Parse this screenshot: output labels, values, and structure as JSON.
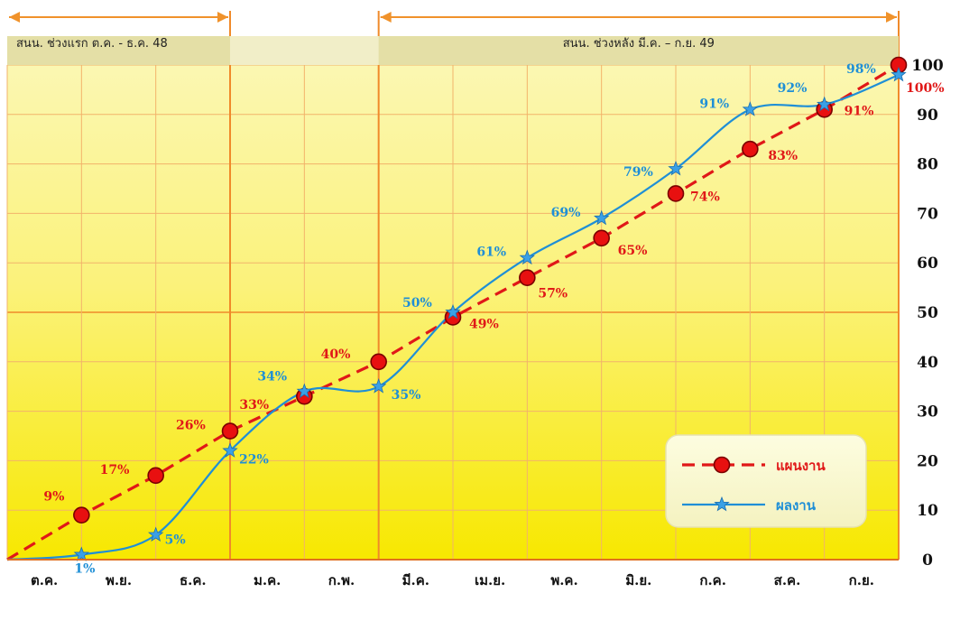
{
  "chart_data": {
    "type": "line",
    "title": "",
    "xlabel": "",
    "ylabel": "",
    "categories": [
      "ต.ค.",
      "พ.ย.",
      "ธ.ค.",
      "ม.ค.",
      "ก.พ.",
      "มี.ค.",
      "เม.ย.",
      "พ.ค.",
      "มิ.ย.",
      "ก.ค.",
      "ส.ค.",
      "ก.ย."
    ],
    "ylim": [
      0,
      100
    ],
    "yticks": [
      0,
      10,
      20,
      30,
      40,
      50,
      60,
      70,
      80,
      90,
      100
    ],
    "grid": true,
    "legend_position": "bottom-right",
    "periods": [
      {
        "label": "สนน. ช่วงแรก ต.ค. - ธ.ค. 48",
        "from": 0,
        "to": 3
      },
      {
        "label": "สนน. ช่วงหลัง มี.ค. – ก.ย. 49",
        "from": 5,
        "to": 12
      }
    ],
    "series": [
      {
        "name": "แผนงาน",
        "color": "#e01818",
        "style": "dashed-circle",
        "x": [
          0,
          1,
          2,
          3,
          4,
          5,
          6,
          7,
          8,
          9,
          10,
          11,
          12
        ],
        "y": [
          0,
          9,
          17,
          26,
          33,
          40,
          49,
          57,
          65,
          74,
          83,
          91,
          100
        ],
        "labels": [
          "",
          "9%",
          "17%",
          "26%",
          "33%",
          "40%",
          "49%",
          "57%",
          "65%",
          "74%",
          "83%",
          "91%",
          "100%"
        ]
      },
      {
        "name": "ผลงาน",
        "color": "#1f8fd6",
        "style": "solid-star",
        "x": [
          0,
          1,
          2,
          3,
          4,
          5,
          6,
          7,
          8,
          9,
          10,
          11,
          12
        ],
        "y": [
          0,
          1,
          5,
          22,
          34,
          35,
          50,
          61,
          69,
          79,
          91,
          92,
          98
        ],
        "labels": [
          "",
          "1%",
          "5%",
          "22%",
          "34%",
          "35%",
          "50%",
          "61%",
          "69%",
          "79%",
          "91%",
          "92%",
          "98%"
        ]
      }
    ]
  }
}
